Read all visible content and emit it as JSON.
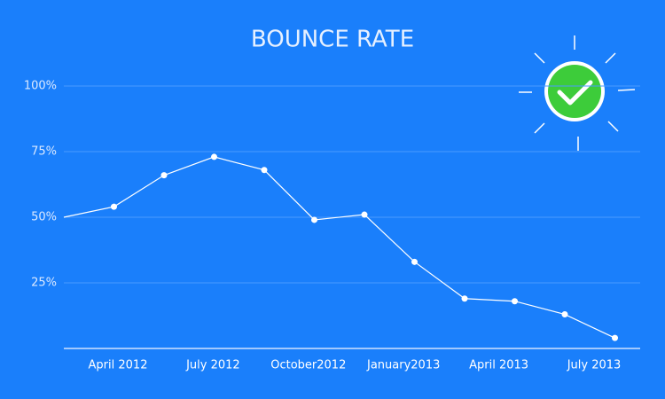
{
  "chart_data": {
    "type": "line",
    "title": "BOUNCE RATE",
    "categories": [
      null,
      null,
      null,
      null,
      null,
      null,
      null,
      null,
      null,
      null,
      null,
      null
    ],
    "x_axis_labels": [
      "April 2012",
      "July 2012",
      "October2012",
      "January2013",
      "April 2013",
      "July 2013"
    ],
    "values": [
      50,
      54,
      66,
      73,
      68,
      49,
      51,
      33,
      19,
      18,
      13,
      4
    ],
    "color": "#ffffff",
    "ylim": [
      0,
      100
    ],
    "yticks": [
      {
        "value": 25,
        "label": "25%"
      },
      {
        "value": 50,
        "label": "50%"
      },
      {
        "value": 75,
        "label": "75%"
      },
      {
        "value": 100,
        "label": "100%"
      }
    ],
    "grid": true
  }
}
